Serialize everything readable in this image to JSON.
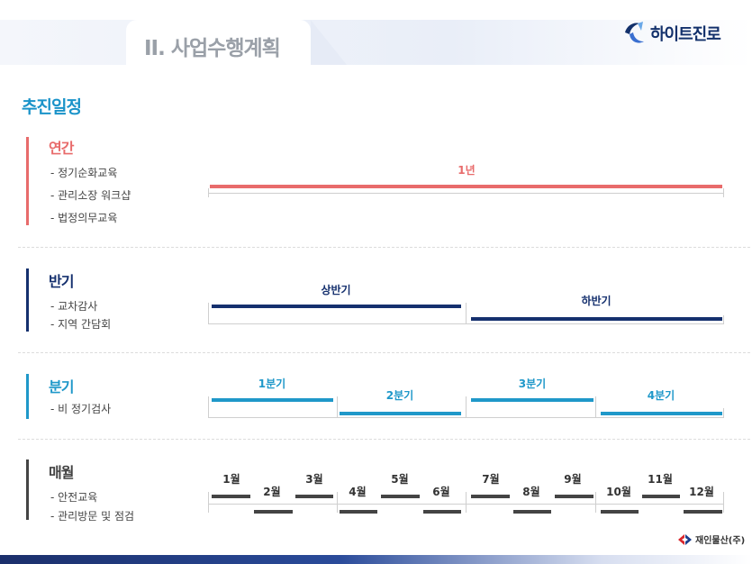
{
  "header": {
    "title": "II. 사업수행계획"
  },
  "brand": {
    "name": "하이트진로",
    "color": "#12306b"
  },
  "section_title": "추진일정",
  "groups": {
    "annual": {
      "title": "연간",
      "color": "#e86b6b",
      "items": [
        "- 정기순화교육",
        "- 관리소장 워크샵",
        "- 법정의무교육"
      ],
      "bars": [
        {
          "label": "1년"
        }
      ]
    },
    "half": {
      "title": "반기",
      "color": "#15306e",
      "items": [
        "- 교차감사",
        "- 지역 간담회"
      ],
      "bars": [
        {
          "label": "상반기"
        },
        {
          "label": "하반기"
        }
      ]
    },
    "quarter": {
      "title": "분기",
      "color": "#1f98c9",
      "items": [
        "- 비 정기검사"
      ],
      "bars": [
        {
          "label": "1분기"
        },
        {
          "label": "2분기"
        },
        {
          "label": "3분기"
        },
        {
          "label": "4분기"
        }
      ]
    },
    "monthly": {
      "title": "매월",
      "color": "#444444",
      "items": [
        "- 안전교육",
        "- 관리방문 및 점검"
      ],
      "months": [
        "1월",
        "2월",
        "3월",
        "4월",
        "5월",
        "6월",
        "7월",
        "8월",
        "9월",
        "10월",
        "11월",
        "12월"
      ]
    }
  },
  "footer": {
    "company": "재인물산(주)",
    "mark_color": "#d9262c"
  }
}
